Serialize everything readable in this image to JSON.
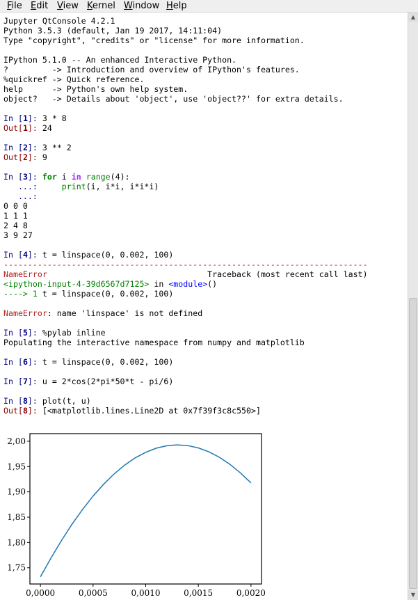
{
  "menubar": {
    "items": [
      {
        "accel": "F",
        "rest": "ile"
      },
      {
        "accel": "E",
        "rest": "dit"
      },
      {
        "accel": "V",
        "rest": "iew"
      },
      {
        "accel": "K",
        "rest": "ernel"
      },
      {
        "accel": "W",
        "rest": "indow"
      },
      {
        "accel": "H",
        "rest": "elp"
      }
    ]
  },
  "banner": [
    "Jupyter QtConsole 4.2.1",
    "Python 3.5.3 (default, Jan 19 2017, 14:11:04)",
    "Type \"copyright\", \"credits\" or \"license\" for more information.",
    "",
    "IPython 5.1.0 -- An enhanced Interactive Python.",
    "?         -> Introduction and overview of IPython's features.",
    "%quickref -> Quick reference.",
    "help      -> Python's own help system.",
    "object?   -> Details about 'object', use 'object??' for extra details."
  ],
  "cells": {
    "c1": {
      "in": "1",
      "code": "3 * 8",
      "out": "24"
    },
    "c2": {
      "in": "2",
      "code": "3 ** 2",
      "out": "9"
    },
    "c3": {
      "in": "3",
      "code_for": "for",
      "code_i": " i ",
      "code_in": "in",
      "code_range": " range",
      "code_arg": "(4):",
      "cont1_prompt": "   ...:     ",
      "cont1_print": "print",
      "cont1_args": "(i, i*i, i*i*i)",
      "cont2_prompt": "   ...: ",
      "output": [
        "0 0 0",
        "1 1 1",
        "2 4 8",
        "3 9 27"
      ]
    },
    "c4": {
      "in": "4",
      "code": "t = linspace(0, 0.002, 100)",
      "dashes": "---------------------------------------------------------------------------",
      "err_name": "NameError",
      "traceback_label": "                                 Traceback (most recent call last)",
      "tb_file": "<ipython-input-4-39d6567d7125>",
      "tb_in": " in ",
      "tb_module": "<module>",
      "tb_paren": "()",
      "tb_arrow": "----> 1 ",
      "tb_code": "t = linspace(0, 0.002, 100)",
      "err_msg_name": "NameError",
      "err_msg": ": name 'linspace' is not defined"
    },
    "c5": {
      "in": "5",
      "code": "%pylab inline",
      "output": "Populating the interactive namespace from numpy and matplotlib"
    },
    "c6": {
      "in": "6",
      "code": "t = linspace(0, 0.002, 100)"
    },
    "c7": {
      "in": "7",
      "code": "u = 2*cos(2*pi*50*t - pi/6)"
    },
    "c8": {
      "in": "8",
      "code": "plot(t, u)",
      "out": "[<matplotlib.lines.Line2D at 0x7f39f3c8c550>]"
    }
  },
  "prompts": {
    "in_word": "In ",
    "out_word": "Out",
    "open": "[",
    "close": "]: "
  },
  "chart_data": {
    "type": "line",
    "x_ticks": [
      "0,0000",
      "0,0005",
      "0,0010",
      "0,0015",
      "0,0020"
    ],
    "y_ticks": [
      "1,75",
      "1,80",
      "1,85",
      "1,90",
      "1,95",
      "2,00"
    ],
    "xlim": [
      -0.0001,
      0.0021
    ],
    "ylim": [
      1.718,
      2.015
    ],
    "series": [
      {
        "color": "#1f77b4",
        "x": [
          0,
          0.0001,
          0.0002,
          0.0003,
          0.0004,
          0.0005,
          0.0006,
          0.0007,
          0.0008,
          0.0009,
          0.001,
          0.0011,
          0.0012,
          0.0013,
          0.0014,
          0.0015,
          0.0016,
          0.0017,
          0.0018,
          0.0019,
          0.002
        ],
        "y": [
          1.7321,
          1.7693,
          1.804,
          1.836,
          1.8652,
          1.8916,
          1.915,
          1.9354,
          1.9528,
          1.9671,
          1.9782,
          1.9862,
          1.9911,
          1.9928,
          1.9914,
          1.9868,
          1.9791,
          1.9683,
          1.9544,
          1.9375,
          1.9176
        ]
      }
    ]
  }
}
